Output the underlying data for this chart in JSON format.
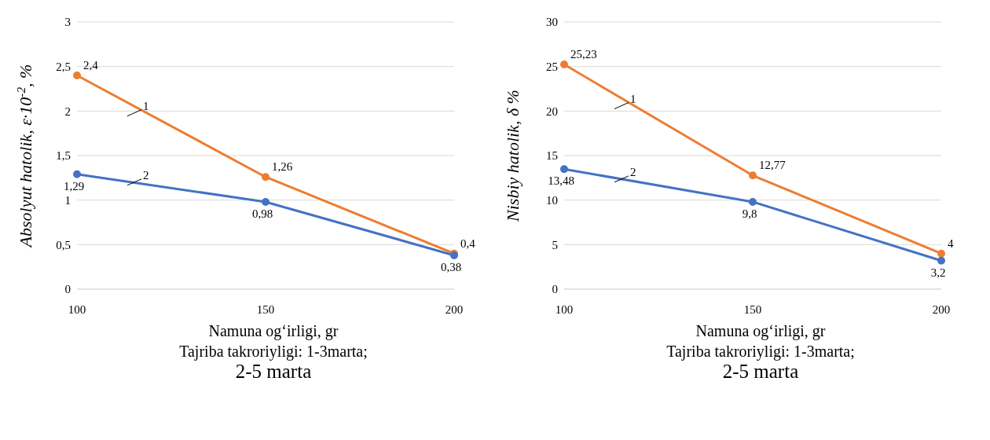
{
  "chart_data": [
    {
      "type": "line",
      "categories": [
        "100",
        "150",
        "200"
      ],
      "ylabel": "Absolyut hatolik, ε·10$^{-2}$, %",
      "xlabel": "Namuna og‘irligi, gr\nTajriba takroriyligi: 1-3marta;\n2-5 marta",
      "ylim": [
        0,
        3
      ],
      "yticks": [
        0,
        {
          "value": 0.5,
          "label": "0,5"
        },
        1,
        {
          "value": 1.5,
          "label": "1,5"
        },
        2,
        {
          "value": 2.5,
          "label": "2,5"
        },
        3
      ],
      "grid": "y",
      "legend": false,
      "marker": "circle",
      "line_style": "solid",
      "series": [
        {
          "name": "1",
          "color": "#ed7d31",
          "values": [
            2.4,
            1.26,
            0.4
          ],
          "value_labels": [
            "2,4",
            "1,26",
            "0,4"
          ]
        },
        {
          "name": "2",
          "color": "#4472c4",
          "values": [
            1.29,
            0.98,
            0.38
          ],
          "value_labels": [
            "1,29",
            "0,98",
            "0,38"
          ]
        }
      ]
    },
    {
      "type": "line",
      "categories": [
        "100",
        "150",
        "200"
      ],
      "ylabel": "Nisbiy hatolik, δ %",
      "xlabel": "Namuna og‘irligi, gr\nTajriba takroriyligi: 1-3marta;\n2-5 marta",
      "ylim": [
        0,
        30
      ],
      "yticks": [
        0,
        5,
        10,
        15,
        20,
        25,
        30
      ],
      "grid": "y",
      "legend": false,
      "marker": "circle",
      "line_style": "solid",
      "series": [
        {
          "name": "1",
          "color": "#ed7d31",
          "values": [
            25.23,
            12.77,
            4
          ],
          "value_labels": [
            "25,23",
            "12,77",
            "4"
          ]
        },
        {
          "name": "2",
          "color": "#4472c4",
          "values": [
            13.48,
            9.8,
            3.2
          ],
          "value_labels": [
            "13,48",
            "9,8",
            "3,2"
          ]
        }
      ]
    }
  ]
}
